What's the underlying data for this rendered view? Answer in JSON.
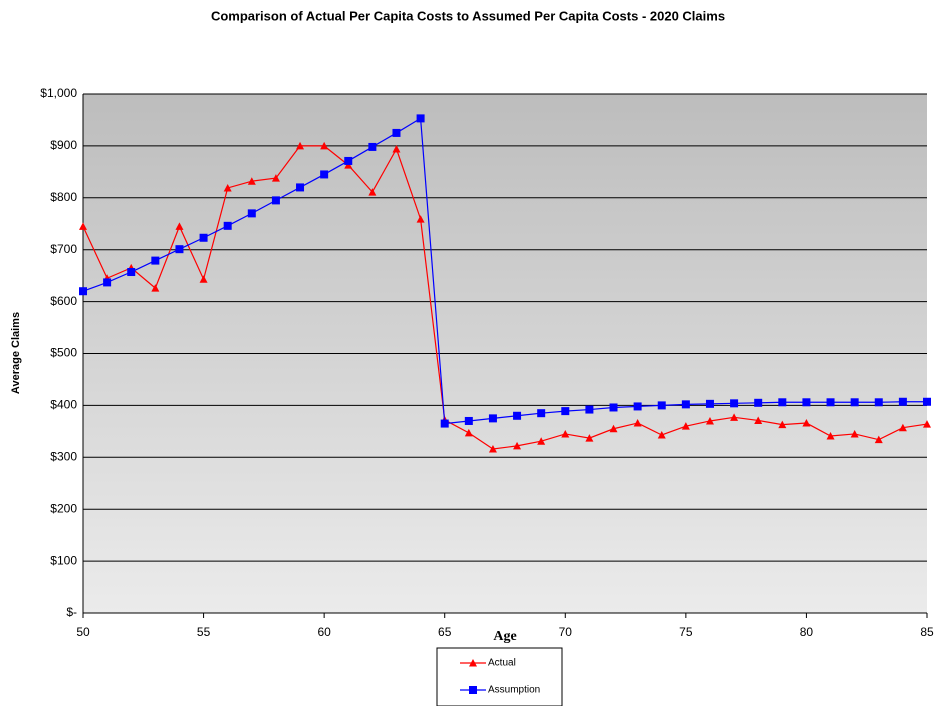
{
  "chart_data": {
    "type": "line",
    "title": "Comparison of Actual Per Capita Costs to Assumed Per Capita Costs - 2020 Claims",
    "x_label": "Age",
    "y_label": "Average Claims",
    "x": [
      50,
      51,
      52,
      53,
      54,
      55,
      56,
      57,
      58,
      59,
      60,
      61,
      62,
      63,
      64,
      65,
      66,
      67,
      68,
      69,
      70,
      71,
      72,
      73,
      74,
      75,
      76,
      77,
      78,
      79,
      80,
      81,
      82,
      83,
      84,
      85
    ],
    "series": [
      {
        "name": "Actual",
        "color": "#ff0000",
        "marker": "triangle",
        "values": [
          745,
          645,
          665,
          626,
          745,
          643,
          819,
          832,
          838,
          900,
          900,
          863,
          811,
          894,
          759,
          372,
          347,
          316,
          322,
          331,
          345,
          337,
          355,
          366,
          343,
          360,
          370,
          377,
          371,
          363,
          366,
          341,
          345,
          334,
          357,
          364
        ]
      },
      {
        "name": "Assumption",
        "color": "#0000ff",
        "marker": "square",
        "values": [
          620,
          637,
          657,
          679,
          701,
          723,
          746,
          770,
          795,
          820,
          845,
          871,
          898,
          925,
          953,
          365,
          370,
          375,
          380,
          385,
          389,
          392,
          396,
          398,
          400,
          402,
          403,
          404,
          405,
          406,
          406,
          406,
          406,
          406,
          407,
          407
        ]
      }
    ],
    "xlim": [
      50,
      85
    ],
    "xticks": [
      50,
      55,
      60,
      65,
      70,
      75,
      80,
      85
    ],
    "ylim": [
      0,
      1000
    ],
    "yticks": [
      {
        "value": 0,
        "label": "$-"
      },
      {
        "value": 100,
        "label": "$100"
      },
      {
        "value": 200,
        "label": "$200"
      },
      {
        "value": 300,
        "label": "$300"
      },
      {
        "value": 400,
        "label": "$400"
      },
      {
        "value": 500,
        "label": "$500"
      },
      {
        "value": 600,
        "label": "$600"
      },
      {
        "value": 700,
        "label": "$700"
      },
      {
        "value": 800,
        "label": "$800"
      },
      {
        "value": 900,
        "label": "$900"
      },
      {
        "value": 1000,
        "label": "$1,000"
      }
    ],
    "grid": true
  }
}
